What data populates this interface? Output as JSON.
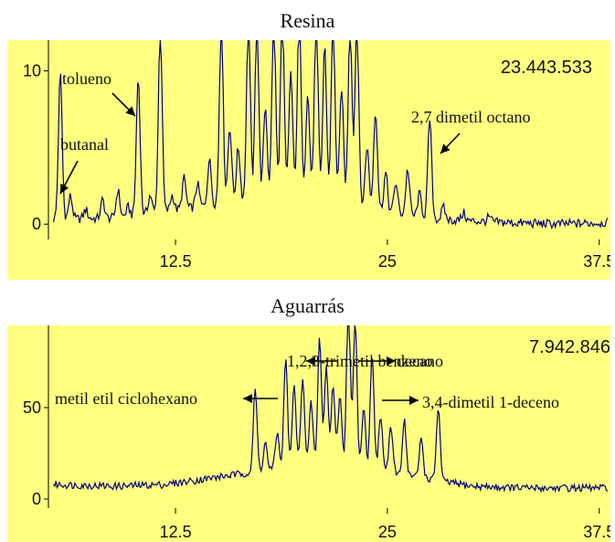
{
  "chart_data": [
    {
      "type": "line",
      "title": "Resina",
      "total_label": "23.443.533",
      "x_ticks": [
        "12.5",
        "25",
        "37.5"
      ],
      "y_ticks": [
        "0",
        "10"
      ],
      "xlim": [
        5,
        38
      ],
      "ylim": [
        -1,
        12
      ],
      "colors": {
        "plot_bg": "#ffff80",
        "line": "#000080",
        "annotation": "#000000"
      },
      "peaks": [
        {
          "x": 5.7,
          "y": 9.5
        },
        {
          "x": 6.3,
          "y": 1.5
        },
        {
          "x": 7.2,
          "y": 0.6
        },
        {
          "x": 8.2,
          "y": 1.2
        },
        {
          "x": 9.1,
          "y": 1.8
        },
        {
          "x": 9.7,
          "y": 0.6
        },
        {
          "x": 10.3,
          "y": 9.0
        },
        {
          "x": 11.0,
          "y": 1.2
        },
        {
          "x": 11.6,
          "y": 12
        },
        {
          "x": 12.3,
          "y": 1.0
        },
        {
          "x": 13.0,
          "y": 2.0
        },
        {
          "x": 13.8,
          "y": 1.5
        },
        {
          "x": 14.5,
          "y": 3.0
        },
        {
          "x": 15.2,
          "y": 12
        },
        {
          "x": 15.7,
          "y": 5.0
        },
        {
          "x": 16.2,
          "y": 3.5
        },
        {
          "x": 16.8,
          "y": 12
        },
        {
          "x": 17.3,
          "y": 12
        },
        {
          "x": 17.8,
          "y": 6.0
        },
        {
          "x": 18.3,
          "y": 12
        },
        {
          "x": 18.8,
          "y": 12
        },
        {
          "x": 19.3,
          "y": 8.0
        },
        {
          "x": 19.8,
          "y": 12
        },
        {
          "x": 20.3,
          "y": 6.5
        },
        {
          "x": 20.8,
          "y": 12
        },
        {
          "x": 21.3,
          "y": 10.0
        },
        {
          "x": 21.8,
          "y": 12
        },
        {
          "x": 22.3,
          "y": 7.5
        },
        {
          "x": 22.8,
          "y": 12
        },
        {
          "x": 23.2,
          "y": 12
        },
        {
          "x": 23.8,
          "y": 4.0
        },
        {
          "x": 24.3,
          "y": 6.5
        },
        {
          "x": 24.9,
          "y": 2.5
        },
        {
          "x": 25.5,
          "y": 2.0
        },
        {
          "x": 26.2,
          "y": 3.0
        },
        {
          "x": 26.9,
          "y": 1.5
        },
        {
          "x": 27.5,
          "y": 6.5
        },
        {
          "x": 28.3,
          "y": 0.8
        },
        {
          "x": 29.5,
          "y": 0.5
        },
        {
          "x": 31.0,
          "y": 0.3
        }
      ],
      "baseline": [
        [
          5,
          0.3
        ],
        [
          9,
          0.4
        ],
        [
          13,
          1.0
        ],
        [
          20,
          2.0
        ],
        [
          25,
          0.8
        ],
        [
          28,
          0.3
        ],
        [
          32,
          0.1
        ],
        [
          35,
          0.0
        ],
        [
          38,
          0.1
        ]
      ],
      "annotations": [
        {
          "text": "tolueno",
          "arrow": "down-right"
        },
        {
          "text": "butanal",
          "arrow": "up"
        },
        {
          "text": "2,7 dimetil octano",
          "arrow": "up-right"
        }
      ]
    },
    {
      "type": "line",
      "title": "Aguarrás",
      "total_label": "7.942.846",
      "x_ticks": [
        "12.5",
        "25",
        "37.5"
      ],
      "y_ticks": [
        "0",
        "50"
      ],
      "xlim": [
        5,
        38
      ],
      "ylim": [
        -5,
        95
      ],
      "colors": {
        "plot_bg": "#ffff80",
        "line": "#000080",
        "annotation": "#000000"
      },
      "peaks": [
        {
          "x": 17.2,
          "y": 45
        },
        {
          "x": 17.8,
          "y": 15
        },
        {
          "x": 18.5,
          "y": 20
        },
        {
          "x": 19.0,
          "y": 60
        },
        {
          "x": 19.5,
          "y": 45
        },
        {
          "x": 20.0,
          "y": 50
        },
        {
          "x": 20.5,
          "y": 35
        },
        {
          "x": 21.0,
          "y": 70
        },
        {
          "x": 21.4,
          "y": 55
        },
        {
          "x": 21.8,
          "y": 45
        },
        {
          "x": 22.2,
          "y": 40
        },
        {
          "x": 22.7,
          "y": 95
        },
        {
          "x": 23.1,
          "y": 80
        },
        {
          "x": 23.6,
          "y": 35
        },
        {
          "x": 24.1,
          "y": 65
        },
        {
          "x": 24.6,
          "y": 30
        },
        {
          "x": 25.2,
          "y": 25
        },
        {
          "x": 26.0,
          "y": 30
        },
        {
          "x": 27.0,
          "y": 22
        },
        {
          "x": 28.0,
          "y": 40
        }
      ],
      "baseline": [
        [
          5,
          8
        ],
        [
          9,
          7
        ],
        [
          12,
          8
        ],
        [
          15,
          12
        ],
        [
          18,
          16
        ],
        [
          21,
          18
        ],
        [
          25,
          15
        ],
        [
          28,
          10
        ],
        [
          30,
          7
        ],
        [
          33,
          6
        ],
        [
          38,
          6
        ]
      ],
      "annotations": [
        {
          "text": "1,2,3-trimetil benzeno",
          "arrow": "left"
        },
        {
          "text": "decano",
          "arrow": "right"
        },
        {
          "text": "metil etil ciclohexano",
          "arrow": "left"
        },
        {
          "text": "3,4-dimetil 1-deceno",
          "arrow": "right"
        }
      ]
    }
  ]
}
